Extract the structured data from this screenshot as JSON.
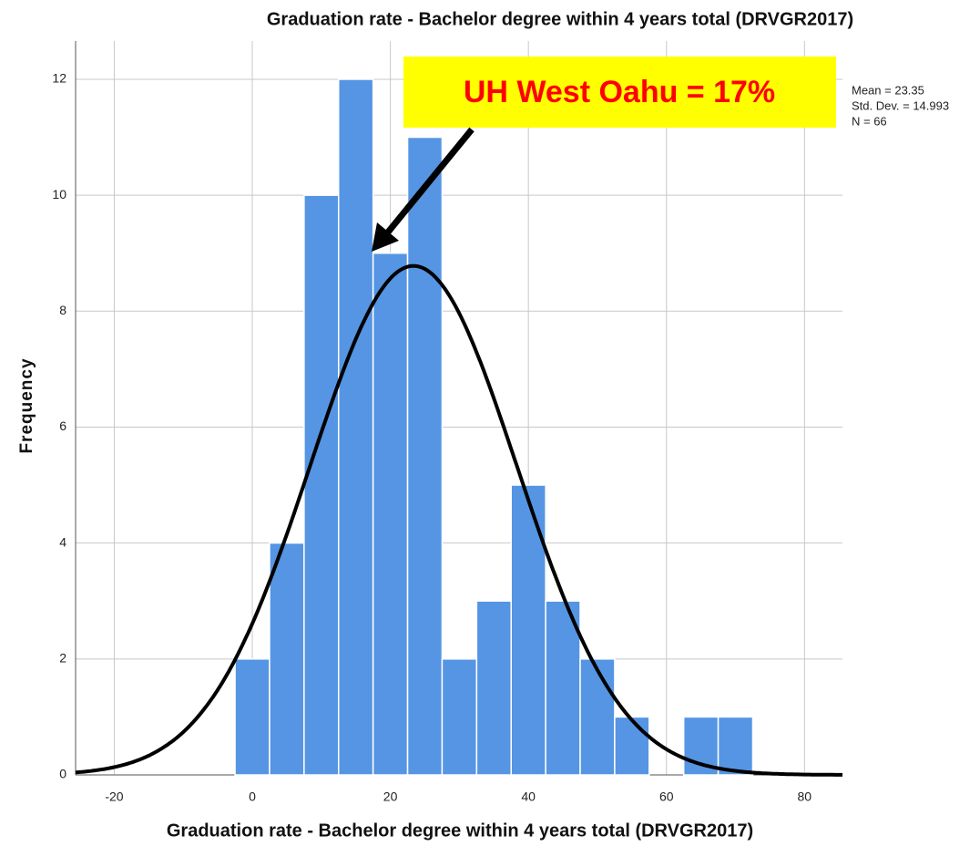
{
  "chart_data": {
    "type": "histogram",
    "title": "Graduation rate - Bachelor degree within 4 years  total (DRVGR2017)",
    "x_label": "Graduation rate - Bachelor degree within 4 years  total (DRVGR2017)",
    "y_label": "Frequency",
    "bins": [
      -2.5,
      2.5,
      7.5,
      12.5,
      17.5,
      22.5,
      27.5,
      32.5,
      37.5,
      42.5,
      47.5,
      52.5,
      57.5,
      62.5,
      67.5,
      72.5
    ],
    "values": [
      2,
      4,
      10,
      12,
      9,
      11,
      2,
      3,
      5,
      3,
      2,
      1,
      0,
      1,
      1
    ],
    "color": "#5595e3",
    "xlim": [
      -25.6,
      85.5
    ],
    "xticks": [
      -20,
      0,
      20,
      40,
      60,
      80
    ],
    "ylim": [
      0,
      12.66
    ],
    "yticks": [
      0,
      2,
      4,
      6,
      8,
      10,
      12
    ],
    "grid": true,
    "stats": [
      {
        "value": 23.35,
        "label": "Mean = 23.35"
      },
      {
        "value": 14.993,
        "label": "Std. Dev. = 14.993"
      },
      {
        "value": 66,
        "label": "N = 66"
      }
    ],
    "annotation": "UH West Oahu = 17%"
  }
}
